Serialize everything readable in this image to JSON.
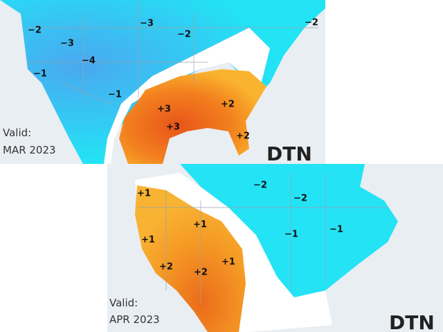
{
  "panels": [
    {
      "valid": "Valid:",
      "date": "MAR 2023",
      "logo": "DTN",
      "labels": [
        "−2",
        "−3",
        "−4",
        "−1",
        "−3",
        "−2",
        "−2",
        "−1",
        "+3",
        "+2",
        "+3",
        "+2"
      ]
    },
    {
      "valid": "Valid:",
      "date": "APR 2023",
      "logo": "DTN",
      "labels": [
        "+1",
        "−2",
        "−2",
        "+1",
        "+1",
        "−1",
        "−1",
        "+1",
        "+2",
        "+2"
      ]
    }
  ]
}
